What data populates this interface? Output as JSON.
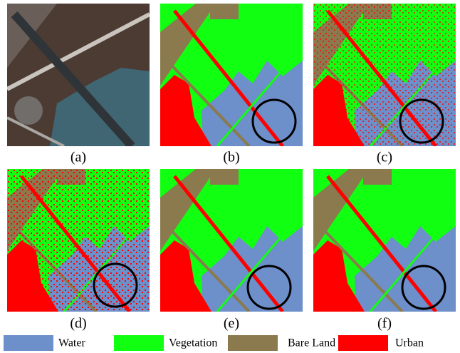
{
  "panels": [
    {
      "label": "(a)"
    },
    {
      "label": "(b)"
    },
    {
      "label": "(c)"
    },
    {
      "label": "(d)"
    },
    {
      "label": "(e)"
    },
    {
      "label": "(f)"
    }
  ],
  "legend": [
    {
      "label": "Water",
      "color": "#6d8fca"
    },
    {
      "label": "Vegetation",
      "color": "#11ff11"
    },
    {
      "label": "Bare Land",
      "color": "#8a7a4e"
    },
    {
      "label": "Urban",
      "color": "#ff0000"
    }
  ]
}
